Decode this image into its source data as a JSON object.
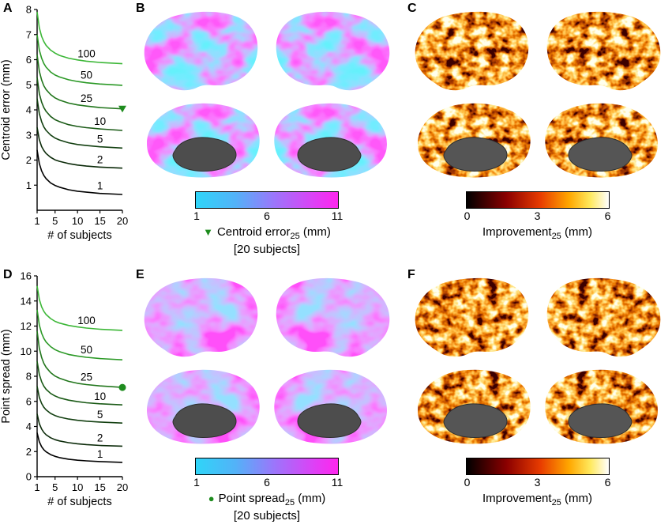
{
  "panels": {
    "A": {
      "letter": "A"
    },
    "B": {
      "letter": "B"
    },
    "C": {
      "letter": "C"
    },
    "D": {
      "letter": "D"
    },
    "E": {
      "letter": "E"
    },
    "F": {
      "letter": "F"
    }
  },
  "chart_data": [
    {
      "svg_id": "chartA",
      "type": "line",
      "title": "",
      "xlabel": "# of subjects",
      "ylabel": "Centroid error (mm)",
      "xlim": [
        1,
        20
      ],
      "ylim": [
        0,
        8
      ],
      "xticks": [
        1,
        5,
        10,
        15,
        20
      ],
      "yticks": [
        1,
        2,
        3,
        4,
        5,
        6,
        7,
        8
      ],
      "x": [
        1,
        1.5,
        2,
        2.5,
        3,
        4,
        5,
        6,
        8,
        10,
        12,
        15,
        20
      ],
      "series": [
        {
          "name": "1",
          "color": "#000000",
          "label_x": 15,
          "values": [
            2.4,
            1.86,
            1.57,
            1.39,
            1.26,
            1.09,
            0.99,
            0.92,
            0.82,
            0.76,
            0.72,
            0.67,
            0.63
          ]
        },
        {
          "name": "2",
          "color": "#0b2a09",
          "label_x": 15,
          "values": [
            3.3,
            2.81,
            2.54,
            2.38,
            2.26,
            2.11,
            2.01,
            1.95,
            1.86,
            1.8,
            1.76,
            1.72,
            1.68
          ]
        },
        {
          "name": "5",
          "color": "#123f10",
          "label_x": 15,
          "values": [
            4.45,
            3.85,
            3.53,
            3.32,
            3.18,
            3.0,
            2.88,
            2.8,
            2.69,
            2.62,
            2.58,
            2.53,
            2.48
          ]
        },
        {
          "name": "10",
          "color": "#1a5a16",
          "label_x": 15,
          "values": [
            5.3,
            4.65,
            4.31,
            4.09,
            3.94,
            3.74,
            3.61,
            3.53,
            3.41,
            3.34,
            3.29,
            3.24,
            3.18
          ]
        },
        {
          "name": "25",
          "color": "#22761c",
          "label_x": 12,
          "values": [
            6.2,
            5.54,
            5.19,
            4.96,
            4.81,
            4.61,
            4.48,
            4.39,
            4.27,
            4.2,
            4.15,
            4.09,
            4.04
          ]
        },
        {
          "name": "50",
          "color": "#2b9926",
          "label_x": 12,
          "values": [
            7.0,
            6.38,
            6.06,
            5.85,
            5.7,
            5.51,
            5.39,
            5.31,
            5.2,
            5.13,
            5.08,
            5.03,
            4.98
          ]
        },
        {
          "name": "100",
          "color": "#3cb737",
          "label_x": 12,
          "values": [
            7.9,
            7.27,
            6.93,
            6.72,
            6.57,
            6.38,
            6.26,
            6.17,
            6.06,
            5.99,
            5.94,
            5.89,
            5.84
          ]
        }
      ],
      "marker": {
        "shape": "triangle-down",
        "x": 20,
        "y": 4.04,
        "color": "#1e8c1e"
      }
    },
    {
      "svg_id": "chartD",
      "type": "line",
      "title": "",
      "xlabel": "# of subjects",
      "ylabel": "Point spread (mm)",
      "xlim": [
        1,
        20
      ],
      "ylim": [
        0,
        16
      ],
      "xticks": [
        1,
        5,
        10,
        15,
        20
      ],
      "yticks": [
        0,
        2,
        4,
        6,
        8,
        10,
        12,
        14,
        16
      ],
      "x": [
        1,
        1.5,
        2,
        2.5,
        3,
        4,
        5,
        6,
        8,
        10,
        12,
        15,
        20
      ],
      "series": [
        {
          "name": "1",
          "color": "#000000",
          "label_x": 15,
          "values": [
            3.5,
            2.78,
            2.39,
            2.15,
            1.98,
            1.76,
            1.62,
            1.52,
            1.39,
            1.31,
            1.26,
            1.2,
            1.14
          ]
        },
        {
          "name": "2",
          "color": "#0b2a09",
          "label_x": 15,
          "values": [
            5.0,
            4.22,
            3.8,
            3.53,
            3.34,
            3.1,
            2.95,
            2.85,
            2.71,
            2.62,
            2.56,
            2.49,
            2.43
          ]
        },
        {
          "name": "5",
          "color": "#123f10",
          "label_x": 15,
          "values": [
            7.2,
            6.31,
            5.83,
            5.53,
            5.32,
            5.04,
            4.87,
            4.75,
            4.59,
            4.49,
            4.42,
            4.35,
            4.27
          ]
        },
        {
          "name": "10",
          "color": "#1a5a16",
          "label_x": 15,
          "values": [
            9.2,
            8.14,
            7.57,
            7.21,
            6.96,
            6.63,
            6.43,
            6.28,
            6.1,
            5.98,
            5.89,
            5.81,
            5.72
          ]
        },
        {
          "name": "25",
          "color": "#22761c",
          "label_x": 12,
          "values": [
            11.6,
            10.23,
            9.5,
            9.03,
            8.71,
            8.29,
            8.02,
            7.84,
            7.6,
            7.44,
            7.34,
            7.23,
            7.11
          ]
        },
        {
          "name": "50",
          "color": "#2b9926",
          "label_x": 12,
          "values": [
            13.3,
            12.08,
            11.43,
            11.02,
            10.73,
            10.36,
            10.12,
            9.96,
            9.74,
            9.61,
            9.51,
            9.41,
            9.31
          ]
        },
        {
          "name": "100",
          "color": "#3cb737",
          "label_x": 12,
          "values": [
            15.2,
            14.12,
            13.54,
            13.18,
            12.92,
            12.6,
            12.38,
            12.24,
            12.05,
            11.93,
            11.84,
            11.75,
            11.66
          ]
        }
      ],
      "marker": {
        "shape": "circle",
        "x": 20,
        "y": 7.11,
        "color": "#1e8c1e"
      }
    }
  ],
  "colorbars": {
    "B": {
      "ticks": [
        "1",
        "6",
        "11"
      ]
    },
    "C": {
      "ticks": [
        "0",
        "3",
        "6"
      ]
    },
    "E": {
      "ticks": [
        "1",
        "6",
        "11"
      ]
    },
    "F": {
      "ticks": [
        "0",
        "3",
        "6"
      ]
    }
  },
  "captions": {
    "B": {
      "marker": "▼",
      "title": "Centroid error",
      "sub": "25",
      "unit": " (mm)",
      "line2": "[20 subjects]"
    },
    "C": {
      "title": "Improvement",
      "sub": "25",
      "unit": " (mm)"
    },
    "E": {
      "marker": "●",
      "title": "Point spread",
      "sub": "25",
      "unit": " (mm)",
      "line2": "[20 subjects]"
    },
    "F": {
      "title": "Improvement",
      "sub": "25",
      "unit": " (mm)"
    }
  },
  "colors": {
    "curve_green_max": "#3cb737",
    "marker_green": "#1e8c1e",
    "cool_cmap_ends": [
      "#2fd5f8",
      "#ff26ee"
    ],
    "hot_cmap": [
      "#000000",
      "#8b0000",
      "#ff6a00",
      "#ffd400",
      "#ffffff"
    ],
    "medial_cut_gray": "#4d4d4d"
  }
}
